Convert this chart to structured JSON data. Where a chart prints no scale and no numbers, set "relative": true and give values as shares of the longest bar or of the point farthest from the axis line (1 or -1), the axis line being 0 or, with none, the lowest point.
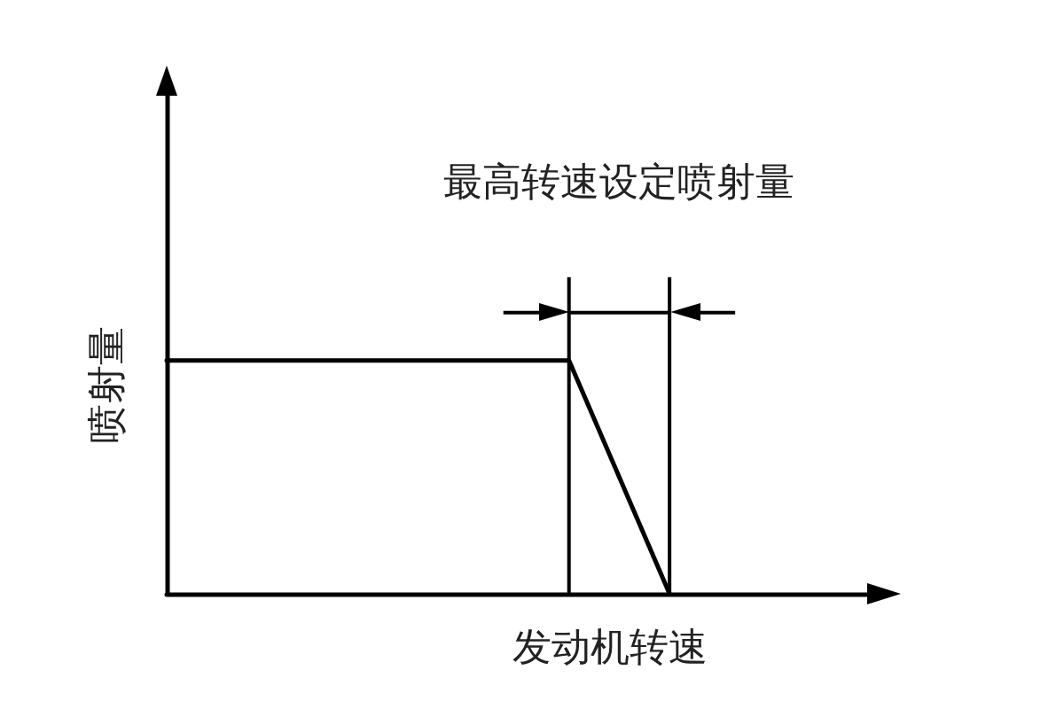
{
  "chart_data": {
    "type": "line",
    "xlabel": "发动机转速",
    "ylabel": "喷射量",
    "annotations": [
      "最高转速设定喷射量"
    ],
    "categories": [
      null,
      null,
      null,
      null,
      null,
      null,
      null,
      null
    ],
    "values": [
      1,
      1,
      1,
      1,
      1,
      0,
      null,
      null
    ],
    "color": "#000000",
    "relative": true
  }
}
